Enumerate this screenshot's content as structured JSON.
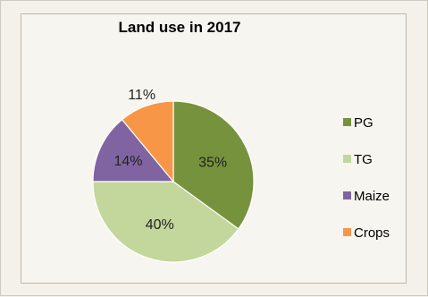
{
  "chart_data": {
    "type": "pie",
    "title": "Land use in 2017",
    "slices": [
      {
        "label": "PG",
        "value": 35,
        "display": "35%",
        "color": "#76923c"
      },
      {
        "label": "TG",
        "value": 40,
        "display": "40%",
        "color": "#c3d69b"
      },
      {
        "label": "Maize",
        "value": 14,
        "display": "14%",
        "color": "#8064a2"
      },
      {
        "label": "Crops",
        "value": 11,
        "display": "11%",
        "color": "#f79646"
      }
    ],
    "legend": [
      "PG",
      "TG",
      "Maize",
      "Crops"
    ],
    "legend_position": "right",
    "start": "top",
    "direction": "clockwise"
  }
}
